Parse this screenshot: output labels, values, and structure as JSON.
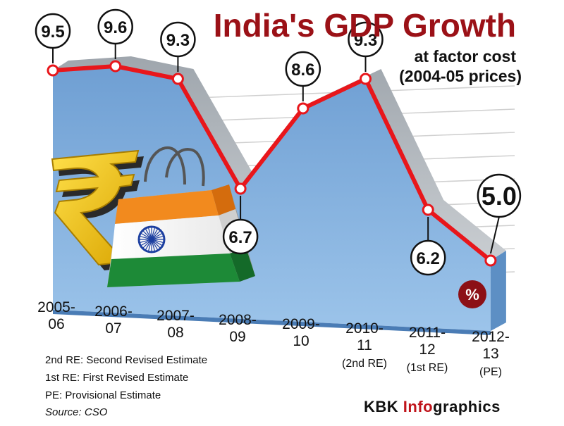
{
  "title": "India's GDP Growth",
  "subtitle_line1": "at factor cost",
  "subtitle_line2": "(2004-05 prices)",
  "unit_badge": "%",
  "chart_data": {
    "type": "line",
    "title": "India's GDP Growth",
    "subtitle": "at factor cost (2004-05 prices)",
    "categories": [
      "2005-06",
      "2006-07",
      "2007-08",
      "2008-09",
      "2009-10",
      "2010-11 (2nd RE)",
      "2011-12 (1st RE)",
      "2012-13 (PE)"
    ],
    "tick_labels": [
      [
        "2005-",
        "06"
      ],
      [
        "2006-",
        "07"
      ],
      [
        "2007-",
        "08"
      ],
      [
        "2008-",
        "09"
      ],
      [
        "2009-",
        "10"
      ],
      [
        "2010-",
        "11",
        "(2nd RE)"
      ],
      [
        "2011-",
        "12",
        "(1st RE)"
      ],
      [
        "2012-",
        "13",
        "(PE)"
      ]
    ],
    "values": [
      9.5,
      9.6,
      9.3,
      6.7,
      8.6,
      9.3,
      6.2,
      5.0
    ],
    "data_labels": [
      "9.5",
      "9.6",
      "9.3",
      "6.7",
      "8.6",
      "9.3",
      "6.2",
      "5.0"
    ],
    "ylabel": "%",
    "colors": {
      "line": "#e8161b",
      "area": "#7fb0e0",
      "area_dark": "#4f86c6",
      "title": "#9b1117"
    }
  },
  "legend_notes": {
    "re2": "2nd RE: Second Revised Estimate",
    "re1": "1st RE: First Revised Estimate",
    "pe": "PE: Provisional Estimate",
    "source": "Source: CSO"
  },
  "credit": {
    "part1": "KBK ",
    "part2": "Info",
    "part3": "graphics"
  },
  "decorations": {
    "rupee": "rupee-symbol-icon",
    "bag": "india-flag-shopping-bag-icon"
  }
}
